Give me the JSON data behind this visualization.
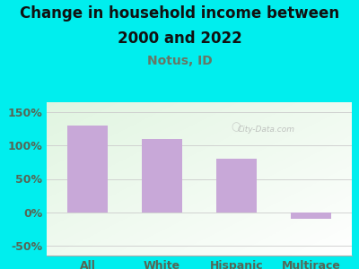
{
  "categories": [
    "All",
    "White",
    "Hispanic",
    "Multirace"
  ],
  "values": [
    130,
    110,
    80,
    -10
  ],
  "bar_color": "#c8a8d8",
  "title_line1": "Change in household income between",
  "title_line2": "2000 and 2022",
  "subtitle": "Notus, ID",
  "subtitle_color": "#667766",
  "title_color": "#111111",
  "background_color": "#00eeee",
  "tick_label_color": "#556655",
  "yticks": [
    -50,
    0,
    50,
    100,
    150
  ],
  "ylim": [
    -65,
    165
  ],
  "xlim": [
    -0.55,
    3.55
  ],
  "watermark": "City-Data.com",
  "title_fontsize": 12,
  "subtitle_fontsize": 10,
  "tick_fontsize": 9,
  "bar_width": 0.55
}
